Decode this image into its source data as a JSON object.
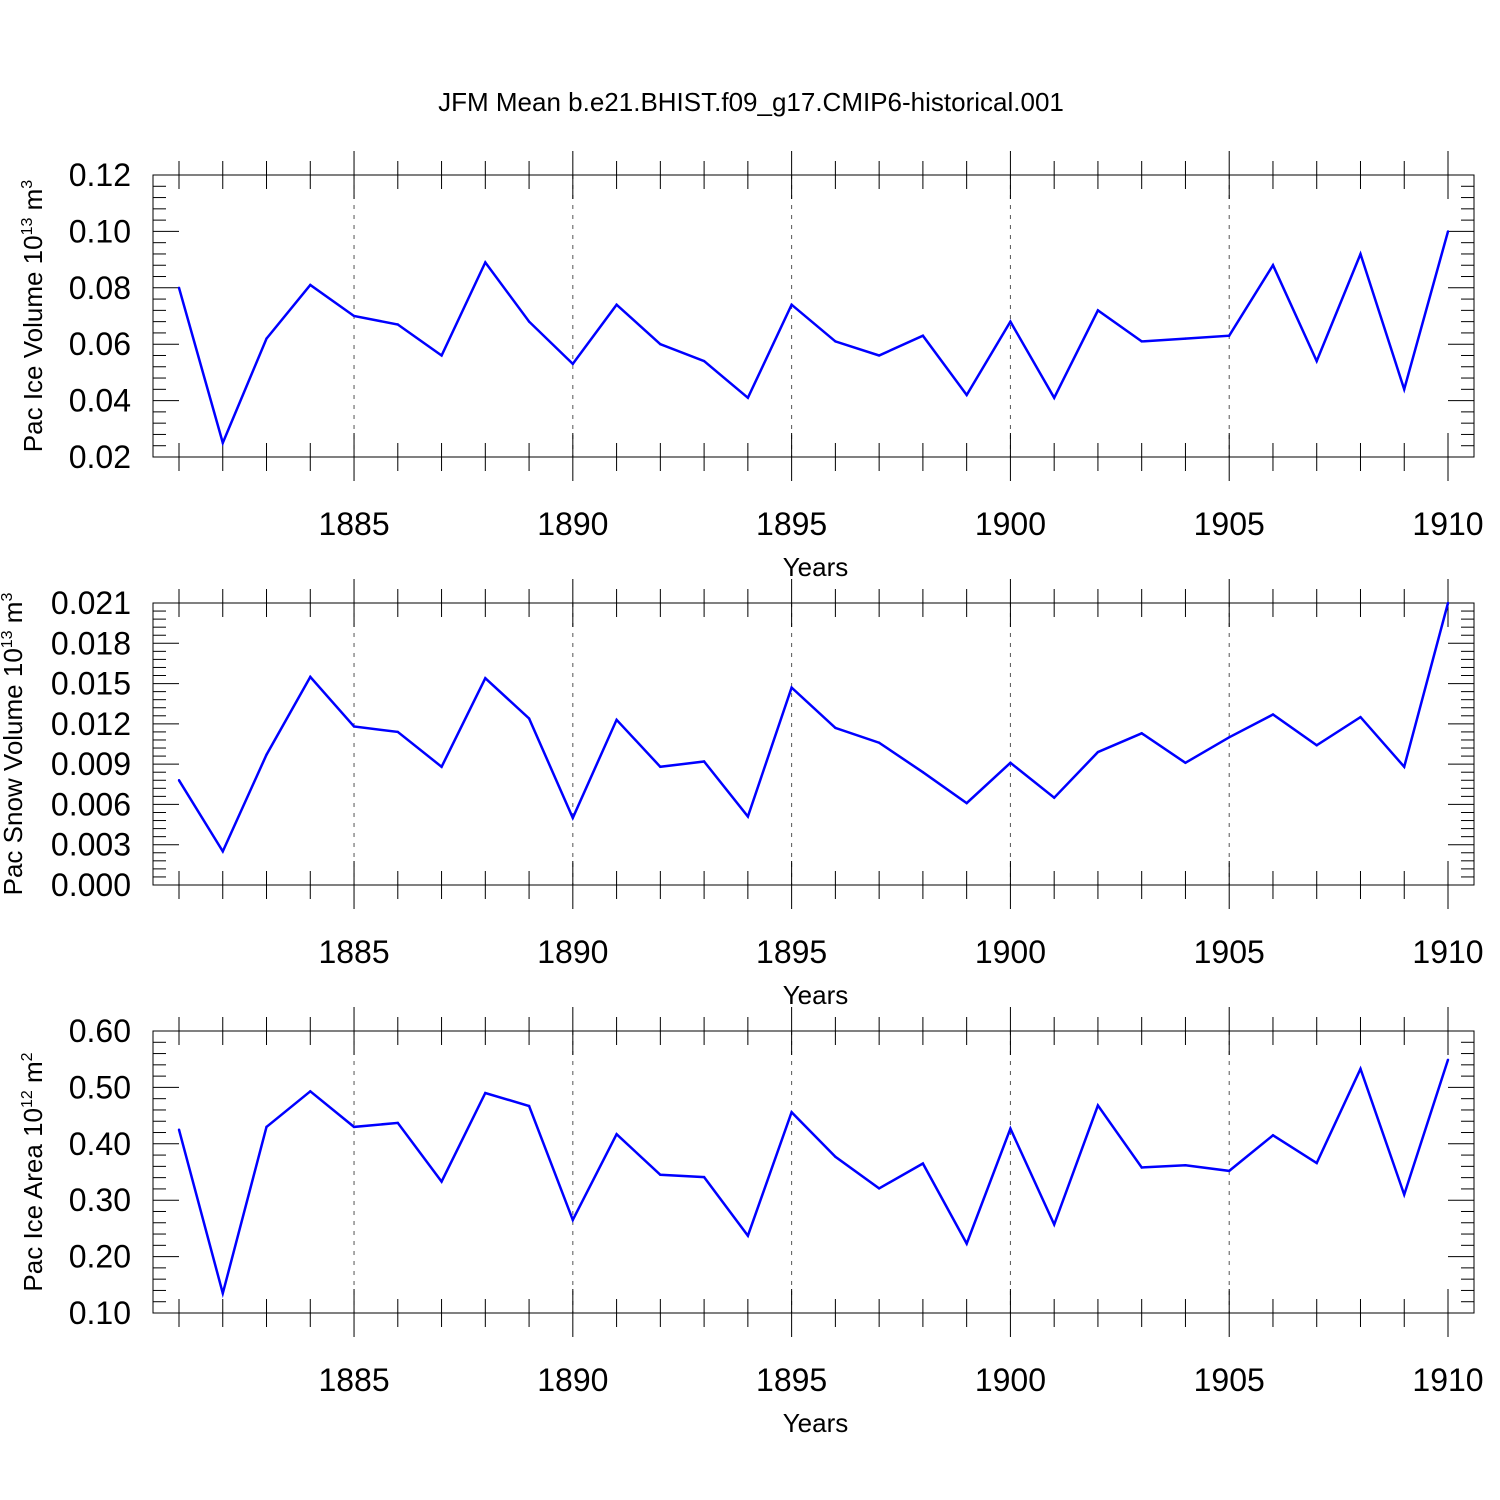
{
  "figure": {
    "title": "JFM Mean b.e21.BHIST.f09_g17.CMIP6-historical.001"
  },
  "chart_data": [
    {
      "type": "line",
      "title": "JFM Mean b.e21.BHIST.f09_g17.CMIP6-historical.001",
      "ylabel_main": "Pac Ice Volume 10",
      "ylabel_exp": "13",
      "ylabel_unit": " m",
      "ylabel_unit_exp": "3",
      "xlabel": "Years",
      "xlim": [
        1881,
        1910
      ],
      "ylim": [
        0.02,
        0.12
      ],
      "xticks": [
        1885,
        1890,
        1895,
        1900,
        1905,
        1910
      ],
      "xtick_labels": [
        "1885",
        "1890",
        "1895",
        "1900",
        "1905",
        "1910"
      ],
      "yticks": [
        0.02,
        0.04,
        0.06,
        0.08,
        0.1,
        0.12
      ],
      "ytick_labels": [
        "0.02",
        "0.04",
        "0.06",
        "0.08",
        "0.10",
        "0.12"
      ],
      "grid_x": true,
      "color": "#0000ff",
      "series": [
        {
          "name": "Pac Ice Volume",
          "x": [
            1881,
            1882,
            1883,
            1884,
            1885,
            1886,
            1887,
            1888,
            1889,
            1890,
            1891,
            1892,
            1893,
            1894,
            1895,
            1896,
            1897,
            1898,
            1899,
            1900,
            1901,
            1902,
            1903,
            1904,
            1905,
            1906,
            1907,
            1908,
            1909,
            1910
          ],
          "values": [
            0.08,
            0.025,
            0.062,
            0.081,
            0.07,
            0.067,
            0.056,
            0.089,
            0.068,
            0.053,
            0.074,
            0.06,
            0.054,
            0.041,
            0.074,
            0.061,
            0.056,
            0.063,
            0.042,
            0.068,
            0.041,
            0.072,
            0.061,
            0.062,
            0.063,
            0.088,
            0.054,
            0.092,
            0.044,
            0.1
          ]
        }
      ]
    },
    {
      "type": "line",
      "ylabel_main": "Pac Snow Volume 10",
      "ylabel_exp": "13",
      "ylabel_unit": " m",
      "ylabel_unit_exp": "3",
      "xlabel": "Years",
      "xlim": [
        1881,
        1910
      ],
      "ylim": [
        0.0,
        0.021
      ],
      "xticks": [
        1885,
        1890,
        1895,
        1900,
        1905,
        1910
      ],
      "xtick_labels": [
        "1885",
        "1890",
        "1895",
        "1900",
        "1905",
        "1910"
      ],
      "yticks": [
        0.0,
        0.003,
        0.006,
        0.009,
        0.012,
        0.015,
        0.018,
        0.021
      ],
      "ytick_labels": [
        "0.000",
        "0.003",
        "0.006",
        "0.009",
        "0.012",
        "0.015",
        "0.018",
        "0.021"
      ],
      "grid_x": true,
      "color": "#0000ff",
      "series": [
        {
          "name": "Pac Snow Volume",
          "x": [
            1881,
            1882,
            1883,
            1884,
            1885,
            1886,
            1887,
            1888,
            1889,
            1890,
            1891,
            1892,
            1893,
            1894,
            1895,
            1896,
            1897,
            1898,
            1899,
            1900,
            1901,
            1902,
            1903,
            1904,
            1905,
            1906,
            1907,
            1908,
            1909,
            1910
          ],
          "values": [
            0.0078,
            0.0025,
            0.0097,
            0.0155,
            0.0118,
            0.0114,
            0.0088,
            0.0154,
            0.0124,
            0.005,
            0.0123,
            0.0088,
            0.0092,
            0.0051,
            0.0147,
            0.0117,
            0.0106,
            0.0084,
            0.0061,
            0.0091,
            0.0065,
            0.0099,
            0.0113,
            0.0091,
            0.011,
            0.0127,
            0.0104,
            0.0125,
            0.0088,
            0.021
          ]
        }
      ]
    },
    {
      "type": "line",
      "ylabel_main": "Pac Ice Area 10",
      "ylabel_exp": "12",
      "ylabel_unit": " m",
      "ylabel_unit_exp": "2",
      "xlabel": "Years",
      "xlim": [
        1881,
        1910
      ],
      "ylim": [
        0.1,
        0.6
      ],
      "xticks": [
        1885,
        1890,
        1895,
        1900,
        1905,
        1910
      ],
      "xtick_labels": [
        "1885",
        "1890",
        "1895",
        "1900",
        "1905",
        "1910"
      ],
      "yticks": [
        0.1,
        0.2,
        0.3,
        0.4,
        0.5,
        0.6
      ],
      "ytick_labels": [
        "0.10",
        "0.20",
        "0.30",
        "0.40",
        "0.50",
        "0.60"
      ],
      "grid_x": true,
      "color": "#0000ff",
      "series": [
        {
          "name": "Pac Ice Area",
          "x": [
            1881,
            1882,
            1883,
            1884,
            1885,
            1886,
            1887,
            1888,
            1889,
            1890,
            1891,
            1892,
            1893,
            1894,
            1895,
            1896,
            1897,
            1898,
            1899,
            1900,
            1901,
            1902,
            1903,
            1904,
            1905,
            1906,
            1907,
            1908,
            1909,
            1910
          ],
          "values": [
            0.425,
            0.135,
            0.43,
            0.493,
            0.43,
            0.437,
            0.333,
            0.49,
            0.467,
            0.265,
            0.417,
            0.345,
            0.341,
            0.237,
            0.456,
            0.377,
            0.321,
            0.365,
            0.223,
            0.427,
            0.257,
            0.468,
            0.358,
            0.362,
            0.352,
            0.415,
            0.366,
            0.533,
            0.31,
            0.549
          ]
        }
      ]
    }
  ]
}
